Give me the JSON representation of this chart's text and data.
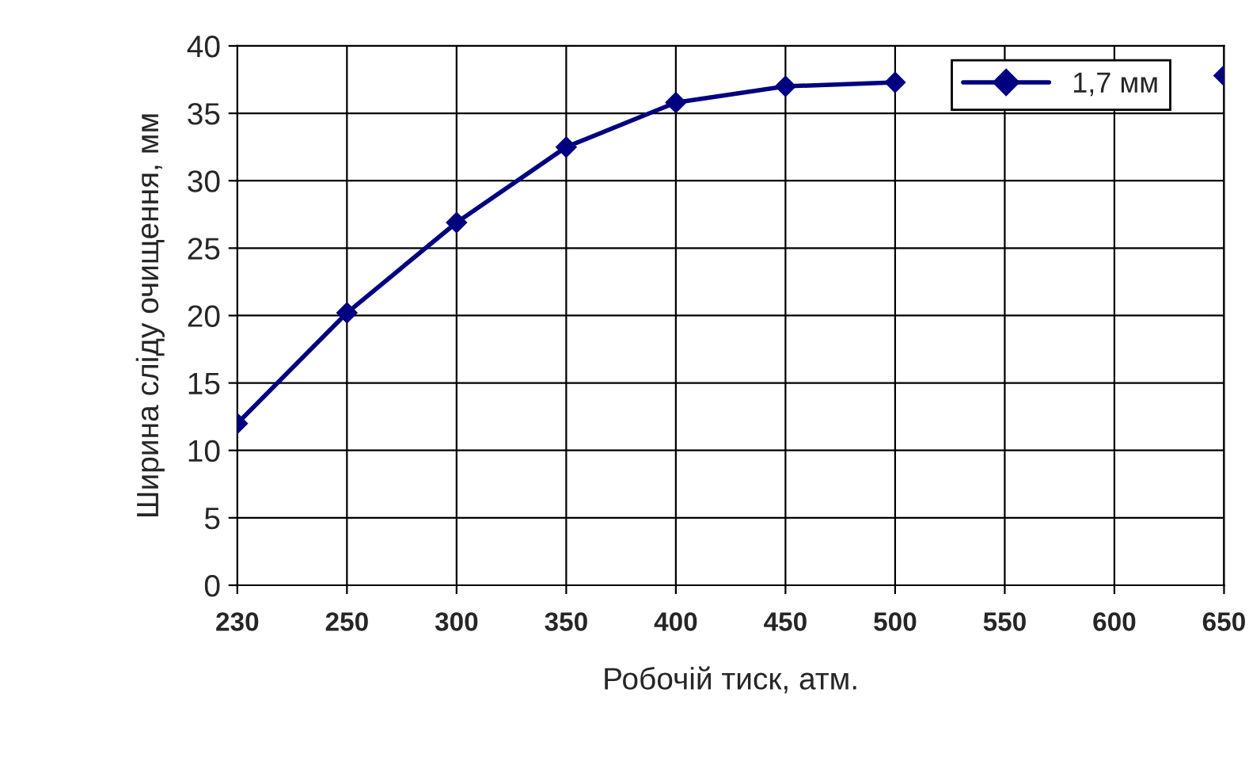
{
  "chart_data": {
    "type": "line",
    "xlabel": "Робочій тиск, атм.",
    "ylabel": "Ширина сліду очищення, мм",
    "categories": [
      "230",
      "250",
      "300",
      "350",
      "400",
      "450",
      "500",
      "550",
      "600",
      "650"
    ],
    "series": [
      {
        "name": "1,7 мм",
        "color": "#000080",
        "values": [
          12.0,
          20.2,
          26.9,
          32.5,
          35.8,
          37.0,
          37.3,
          null,
          null,
          37.8
        ]
      }
    ],
    "ylim": [
      0,
      40
    ],
    "yticks": [
      0,
      5,
      10,
      15,
      20,
      25,
      30,
      35,
      40
    ],
    "grid": true,
    "legend": "top right",
    "marker": "diamond",
    "line_style": "solid"
  }
}
